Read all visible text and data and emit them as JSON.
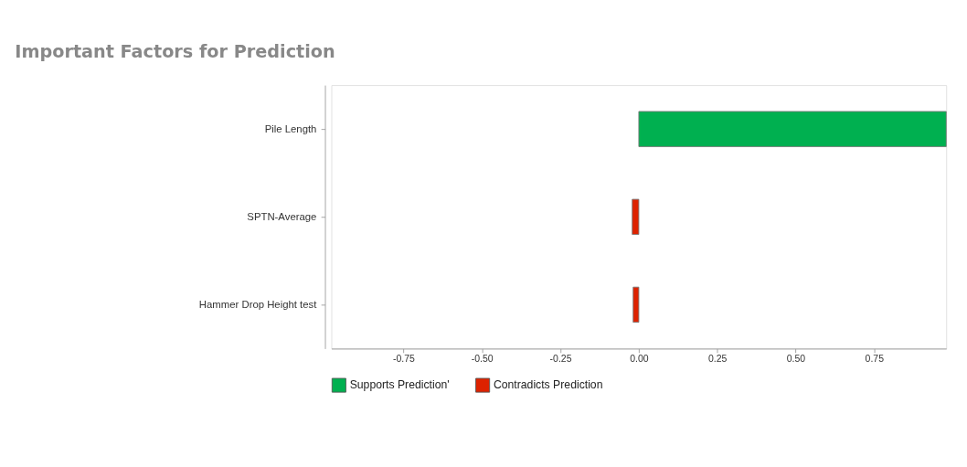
{
  "chart_data": {
    "type": "bar",
    "orientation": "horizontal",
    "title": "Important Factors for Prediction",
    "categories": [
      "Pile Length",
      "SPTN-Average",
      "Hammer Drop Height test"
    ],
    "series": [
      {
        "name": "Supports Prediction'",
        "color": "#00b050",
        "values": [
          0.98,
          null,
          null
        ]
      },
      {
        "name": "Contradicts Prediction",
        "color": "#dd2200",
        "values": [
          null,
          -0.021,
          -0.018
        ]
      }
    ],
    "xlim": [
      -0.98,
      0.98
    ],
    "xticks": [
      {
        "value": -0.75,
        "label": "-0.75"
      },
      {
        "value": -0.5,
        "label": "-0.50"
      },
      {
        "value": -0.25,
        "label": "-0.25"
      },
      {
        "value": 0,
        "label": "0.00"
      },
      {
        "value": 0.25,
        "label": "0.25"
      },
      {
        "value": 0.5,
        "label": "0.50"
      },
      {
        "value": 0.75,
        "label": "0.75"
      }
    ],
    "grid": false,
    "legend": "bottom"
  }
}
